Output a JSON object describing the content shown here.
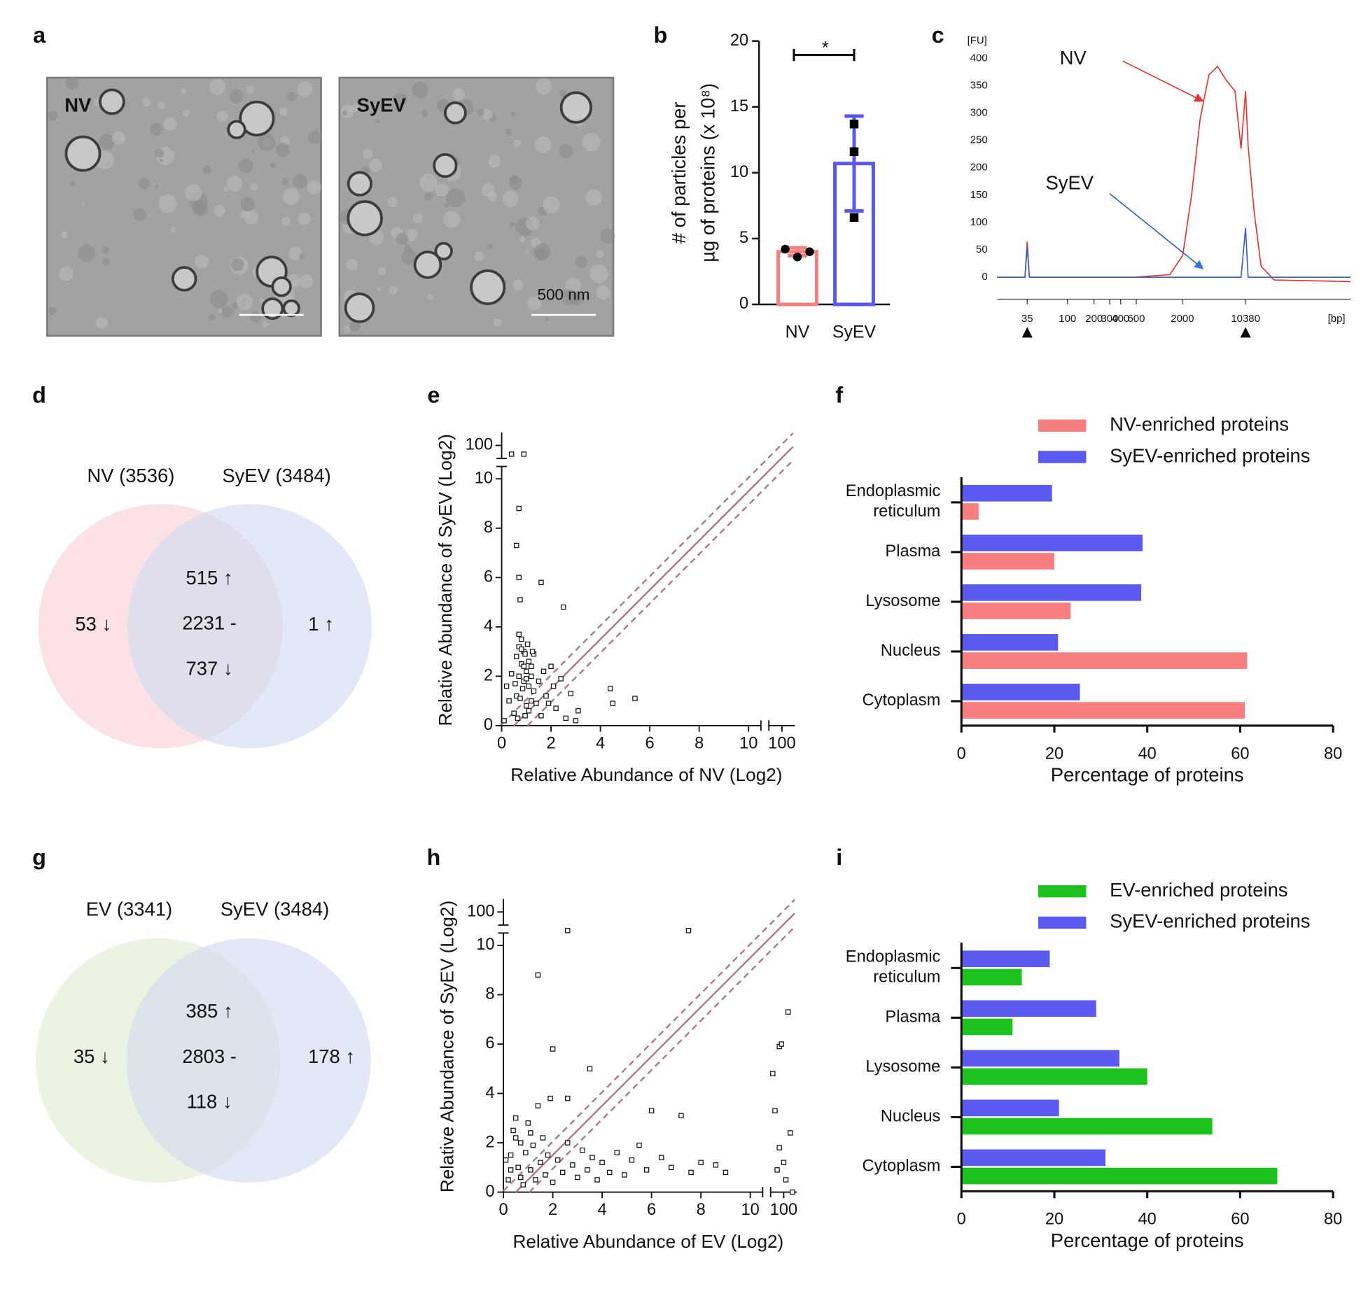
{
  "panel_labels": [
    "a",
    "b",
    "c",
    "d",
    "e",
    "f",
    "g",
    "h",
    "i"
  ],
  "micrographs": [
    {
      "label": "NV"
    },
    {
      "label": "SyEV",
      "scale_bar": "500 nm"
    }
  ],
  "venn": [
    {
      "sets": [
        {
          "name": "NV (3536)",
          "color": "#e8252a",
          "fill": "#fbd3d6"
        },
        {
          "name": "SyEV (3484)",
          "color": "#2f75b5",
          "fill": "#d3dcf0"
        }
      ],
      "left": "53 ↓",
      "top": "515 ↑",
      "center": "2231 -",
      "bottom": "737 ↓",
      "right": "1 ↑"
    },
    {
      "sets": [
        {
          "name": "EV (3341)",
          "color": "#1f9a5c",
          "fill": "#e0ecd4"
        },
        {
          "name": "SyEV (3484)",
          "color": "#2f75b5",
          "fill": "#d3dcf0"
        }
      ],
      "left": "35 ↓",
      "top": "385 ↑",
      "center": "2803 -",
      "bottom": "118 ↓",
      "right": "178 ↑"
    }
  ],
  "chart_data": [
    {
      "type": "bar",
      "categories": [
        "NV",
        "SyEV"
      ],
      "values": [
        4.0,
        10.7
      ],
      "errors": [
        0.3,
        3.6
      ],
      "points": [
        [
          4.2,
          3.6,
          4.0
        ],
        [
          13.7,
          11.6,
          6.6
        ]
      ],
      "colors": [
        "#f47f7f",
        "#5858ee"
      ],
      "ylim": [
        0,
        20
      ],
      "yticks": [
        0,
        5,
        10,
        15,
        20
      ],
      "y_label": [
        "# of particles per",
        "µg of proteins (x 10⁸)"
      ],
      "annotation": "*"
    },
    {
      "type": "line",
      "x_log": true,
      "x": [
        16,
        33,
        35,
        37,
        581,
        1440,
        2020,
        2540,
        3180,
        3990,
        5000,
        6280,
        7870,
        9210,
        10380,
        11070,
        12960,
        15550,
        21840,
        160000
      ],
      "series": [
        {
          "name": "NV",
          "color": "#e8312a",
          "values": [
            0,
            0,
            65,
            0,
            0,
            5,
            40,
            150,
            290,
            370,
            385,
            360,
            340,
            235,
            340,
            240,
            120,
            20,
            -5,
            -8
          ]
        },
        {
          "name": "SyEV",
          "color": "#2f5fd0",
          "values": [
            0,
            0,
            55,
            0,
            0,
            0,
            0,
            0,
            0,
            0,
            0,
            0,
            0,
            0,
            90,
            0,
            0,
            0,
            0,
            0
          ]
        }
      ],
      "xlim": [
        16,
        160000
      ],
      "ylim": [
        -40,
        430
      ],
      "xticks": [
        35,
        100,
        200,
        300,
        400,
        600,
        2000,
        10380
      ],
      "yticks": [
        0,
        50,
        100,
        150,
        200,
        250,
        300,
        350,
        400
      ],
      "x_label": "[bp]",
      "y_label": "[FU]",
      "x_markers": [
        35,
        10380
      ],
      "annotations": [
        {
          "text": "NV",
          "x": 3400,
          "y": 322
        },
        {
          "text": "SyEV",
          "x": 3400,
          "y": 16
        }
      ]
    },
    {
      "type": "scatter",
      "x": [
        0.5,
        0.6,
        0.7,
        0.8,
        0.9,
        1.0,
        1.1,
        1.2,
        0.6,
        0.7,
        0.8,
        0.9,
        1.0,
        1.1,
        1.2,
        1.3,
        0.7,
        0.8,
        0.9,
        1.0,
        1.1,
        0.65,
        0.75,
        0.85,
        0.95,
        1.05,
        0.7,
        0.6,
        0.7,
        0.75,
        1.6,
        2.5,
        1.4,
        1.5,
        1.6,
        1.8,
        2.0,
        2.2,
        2.4,
        2.6,
        2.8,
        3.0,
        1.3,
        1.7,
        1.9,
        2.1,
        4.4,
        4.5,
        5.4,
        3.1,
        0.3,
        0.4,
        0.1,
        0.2,
        0.4,
        0.9,
        1.2,
        0.95,
        1.25,
        0.55
      ],
      "values": [
        0.5,
        1.2,
        2.0,
        2.5,
        3.0,
        2.2,
        1.6,
        1.0,
        2.8,
        3.2,
        3.5,
        1.8,
        0.8,
        2.6,
        2.0,
        1.4,
        3.7,
        3.1,
        2.4,
        1.9,
        0.6,
        0.3,
        1.1,
        1.5,
        2.9,
        3.3,
        8.8,
        7.3,
        6.0,
        5.1,
        5.8,
        4.8,
        0.9,
        1.8,
        0.4,
        1.2,
        2.4,
        0.7,
        1.9,
        0.3,
        1.3,
        0.2,
        2.9,
        2.2,
        0.9,
        1.6,
        1.5,
        0.9,
        1.1,
        0.6,
        1.0,
        2.1,
        0.2,
        1.6,
        98,
        98,
        2.4,
        0.4,
        3.0,
        1.7
      ],
      "xlim": [
        0,
        103
      ],
      "ylim": [
        0,
        103
      ],
      "xticks": [
        0,
        2,
        4,
        6,
        8,
        10,
        100
      ],
      "yticks": [
        0,
        2,
        4,
        6,
        8,
        10,
        100
      ],
      "axis_break": [
        11,
        98
      ],
      "x_label": "Relative Abundance of NV (Log2)",
      "y_label": "Relative Abundance of SyEV (Log2)",
      "reference_lines": [
        {
          "intercept": -0.5,
          "style": "solid"
        },
        {
          "intercept": 0.05,
          "style": "dashed"
        },
        {
          "intercept": -1.05,
          "style": "dashed"
        }
      ],
      "reference_color": "#b07a8e"
    },
    {
      "type": "barh",
      "categories": [
        "Endoplasmic reticulum",
        "Plasma",
        "Lysosome",
        "Nucleus",
        "Cytoplasm"
      ],
      "series": [
        {
          "name": "NV-enriched proteins",
          "color": "#f77f7f",
          "values": [
            3.7,
            20,
            23.5,
            61.5,
            61
          ]
        },
        {
          "name": "SyEV-enriched proteins",
          "color": "#5a5af0",
          "values": [
            19.5,
            39,
            38.7,
            20.8,
            25.5
          ]
        }
      ],
      "xlim": [
        0,
        80
      ],
      "xticks": [
        0,
        20,
        40,
        60,
        80
      ],
      "x_label": "Percentage of proteins"
    },
    {
      "type": "scatter",
      "x": [
        0.2,
        0.3,
        0.4,
        0.5,
        0.6,
        0.7,
        0.8,
        0.9,
        1.0,
        1.1,
        1.2,
        1.3,
        1.4,
        1.5,
        1.6,
        1.7,
        1.8,
        1.9,
        2.0,
        2.2,
        2.4,
        2.6,
        2.8,
        3.0,
        3.2,
        3.4,
        3.6,
        3.8,
        4.0,
        4.3,
        4.6,
        4.9,
        5.2,
        5.5,
        5.8,
        6.0,
        6.4,
        6.8,
        7.2,
        7.6,
        8.0,
        8.6,
        9.0,
        2.6,
        7.5,
        1.4,
        2.0,
        3.5,
        2.6,
        1.1,
        0.3,
        0.5,
        0.1,
        0.7,
        97.5,
        98,
        99,
        99.5,
        101,
        100,
        98.5,
        99,
        100.5,
        101.5,
        102
      ],
      "values": [
        0.5,
        1.5,
        2.5,
        3.0,
        1.0,
        2.0,
        0.3,
        1.6,
        2.8,
        0.9,
        1.9,
        0.5,
        3.5,
        1.2,
        2.2,
        0.7,
        1.5,
        3.8,
        0.4,
        1.3,
        0.8,
        2.0,
        1.1,
        0.6,
        1.7,
        0.9,
        1.4,
        0.5,
        1.2,
        0.8,
        1.6,
        0.7,
        1.3,
        1.9,
        0.9,
        3.3,
        1.4,
        1.0,
        3.1,
        0.8,
        1.2,
        1.1,
        0.8,
        10.6,
        10.6,
        8.8,
        5.8,
        5.0,
        3.8,
        2.4,
        0.9,
        2.2,
        1.3,
        0.6,
        4.8,
        3.3,
        5.9,
        6.0,
        7.3,
        1.2,
        0.9,
        1.8,
        0.5,
        2.4,
        0
      ],
      "xlim": [
        0,
        103
      ],
      "ylim": [
        0,
        103
      ],
      "xticks": [
        0,
        2,
        4,
        6,
        8,
        10,
        100
      ],
      "yticks": [
        0,
        2,
        4,
        6,
        8,
        10,
        100
      ],
      "axis_break": [
        11,
        98
      ],
      "x_label": "Relative Abundance of EV (Log2)",
      "y_label": "Relative Abundance of SyEV (Log2)",
      "reference_lines": [
        {
          "intercept": -0.5,
          "style": "solid"
        },
        {
          "intercept": 0.05,
          "style": "dashed"
        },
        {
          "intercept": -1.05,
          "style": "dashed"
        }
      ],
      "reference_color": "#b07a8e"
    },
    {
      "type": "barh",
      "categories": [
        "Endoplasmic reticulum",
        "Plasma",
        "Lysosome",
        "Nucleus",
        "Cytoplasm"
      ],
      "series": [
        {
          "name": "EV-enriched proteins",
          "color": "#1ec21e",
          "values": [
            13,
            11,
            40,
            54,
            68
          ]
        },
        {
          "name": "SyEV-enriched proteins",
          "color": "#5a5af0",
          "values": [
            19,
            29,
            34,
            21,
            31
          ]
        }
      ],
      "xlim": [
        0,
        80
      ],
      "xticks": [
        0,
        20,
        40,
        60,
        80
      ],
      "x_label": "Percentage of proteins"
    }
  ]
}
